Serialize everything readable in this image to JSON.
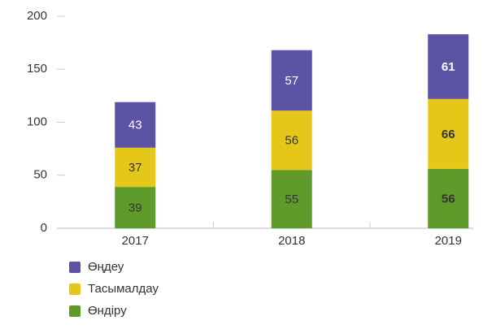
{
  "chart_data": {
    "type": "stacked_bar",
    "categories": [
      "2017",
      "2018",
      "2019"
    ],
    "series": [
      {
        "name": "Өндіру",
        "color": "#5e9b2b",
        "values": [
          39,
          55,
          56
        ]
      },
      {
        "name": "Тасымалдау",
        "color": "#e5c719",
        "values": [
          37,
          56,
          66
        ]
      },
      {
        "name": "Өңдеу",
        "color": "#5c53a5",
        "values": [
          43,
          57,
          61
        ]
      }
    ],
    "ylim": [
      0,
      200
    ],
    "yticks": [
      0,
      50,
      100,
      150,
      200
    ],
    "legend": "bottom-left"
  }
}
